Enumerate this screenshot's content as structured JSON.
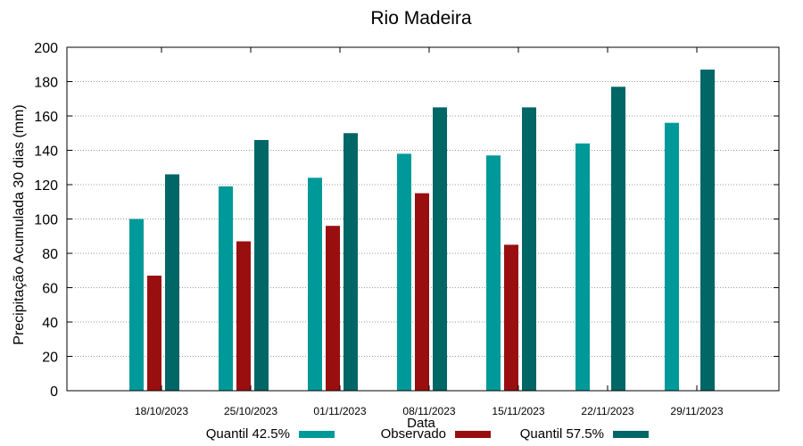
{
  "chart_data": {
    "type": "bar",
    "title": "Rio Madeira",
    "xlabel": "Data",
    "ylabel": "Precipitação Acumulada 30 dias (mm)",
    "ylim": [
      0,
      200
    ],
    "yticks": [
      0,
      20,
      40,
      60,
      80,
      100,
      120,
      140,
      160,
      180,
      200
    ],
    "grid": true,
    "legend_position": "bottom",
    "categories": [
      "18/10/2023",
      "25/10/2023",
      "01/11/2023",
      "08/11/2023",
      "15/11/2023",
      "22/11/2023",
      "29/11/2023"
    ],
    "series": [
      {
        "name": "Quantil 42.5%",
        "color": "#009999",
        "values": [
          100,
          119,
          124,
          138,
          137,
          144,
          156
        ]
      },
      {
        "name": "Observado",
        "color": "#990f0f",
        "values": [
          67,
          87,
          96,
          115,
          85,
          null,
          null
        ]
      },
      {
        "name": "Quantil 57.5%",
        "color": "#006666",
        "values": [
          126,
          146,
          150,
          165,
          165,
          177,
          187
        ]
      }
    ]
  }
}
